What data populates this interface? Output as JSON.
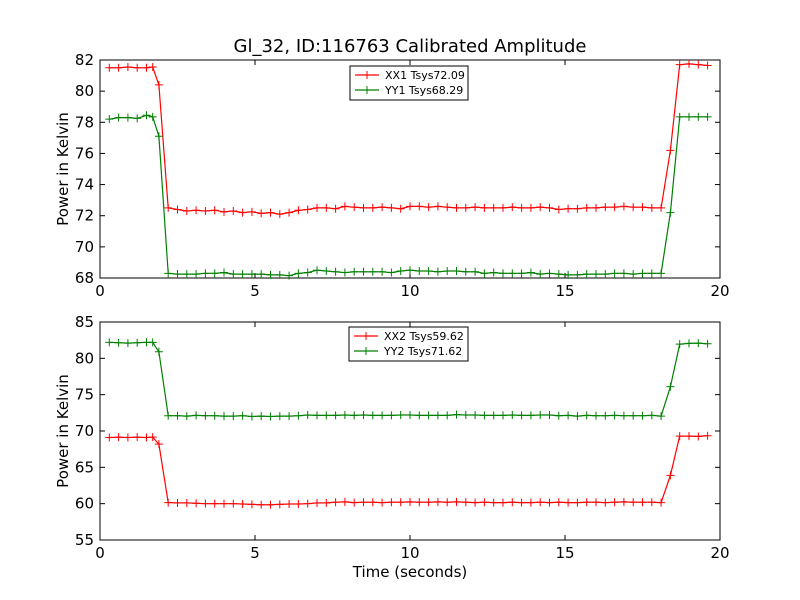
{
  "chart_data": [
    {
      "type": "line",
      "title": "Gl_32, ID:116763 Calibrated Amplitude",
      "xlabel": "",
      "ylabel": "Power in Kelvin",
      "xlim": [
        0,
        20
      ],
      "ylim": [
        68,
        82
      ],
      "xticks": [
        0,
        5,
        10,
        15,
        20
      ],
      "yticks": [
        68,
        70,
        72,
        74,
        76,
        78,
        80,
        82
      ],
      "grid": false,
      "legend_position": "top-center",
      "x": [
        0.3,
        0.6,
        0.9,
        1.2,
        1.5,
        1.7,
        1.9,
        2.2,
        2.5,
        2.8,
        3.1,
        3.4,
        3.7,
        4.0,
        4.3,
        4.6,
        4.9,
        5.2,
        5.5,
        5.8,
        6.1,
        6.4,
        6.7,
        7.0,
        7.3,
        7.6,
        7.9,
        8.2,
        8.5,
        8.8,
        9.1,
        9.4,
        9.7,
        10.0,
        10.3,
        10.6,
        10.9,
        11.2,
        11.5,
        11.8,
        12.1,
        12.4,
        12.7,
        13.0,
        13.3,
        13.6,
        13.9,
        14.2,
        14.5,
        14.8,
        15.1,
        15.4,
        15.7,
        16.0,
        16.3,
        16.6,
        16.9,
        17.2,
        17.5,
        17.8,
        18.1,
        18.4,
        18.7,
        19.0,
        19.3,
        19.6
      ],
      "series": [
        {
          "name": "XX1 Tsys72.09",
          "color": "#ff0000",
          "values": [
            81.5,
            81.5,
            81.55,
            81.5,
            81.5,
            81.55,
            80.4,
            72.5,
            72.4,
            72.3,
            72.35,
            72.3,
            72.35,
            72.25,
            72.3,
            72.2,
            72.25,
            72.15,
            72.2,
            72.1,
            72.2,
            72.35,
            72.4,
            72.5,
            72.5,
            72.45,
            72.6,
            72.55,
            72.5,
            72.5,
            72.55,
            72.5,
            72.45,
            72.6,
            72.6,
            72.55,
            72.6,
            72.55,
            72.5,
            72.5,
            72.55,
            72.5,
            72.5,
            72.5,
            72.55,
            72.5,
            72.5,
            72.55,
            72.5,
            72.4,
            72.45,
            72.45,
            72.5,
            72.5,
            72.55,
            72.55,
            72.6,
            72.55,
            72.55,
            72.5,
            72.5,
            76.2,
            81.7,
            81.75,
            81.7,
            81.65
          ]
        },
        {
          "name": "YY1 Tsys68.29",
          "color": "#008000",
          "values": [
            78.2,
            78.3,
            78.3,
            78.25,
            78.45,
            78.35,
            77.1,
            68.3,
            68.25,
            68.25,
            68.25,
            68.3,
            68.3,
            68.35,
            68.25,
            68.25,
            68.25,
            68.25,
            68.2,
            68.2,
            68.15,
            68.3,
            68.35,
            68.5,
            68.45,
            68.4,
            68.35,
            68.4,
            68.4,
            68.4,
            68.4,
            68.35,
            68.45,
            68.5,
            68.45,
            68.45,
            68.4,
            68.45,
            68.45,
            68.4,
            68.4,
            68.3,
            68.35,
            68.3,
            68.3,
            68.3,
            68.35,
            68.25,
            68.3,
            68.25,
            68.2,
            68.2,
            68.25,
            68.25,
            68.25,
            68.3,
            68.3,
            68.25,
            68.3,
            68.3,
            68.3,
            72.2,
            78.35,
            78.35,
            78.35,
            78.35
          ]
        }
      ]
    },
    {
      "type": "line",
      "title": "",
      "xlabel": "Time (seconds)",
      "ylabel": "Power in Kelvin",
      "xlim": [
        0,
        20
      ],
      "ylim": [
        55,
        85
      ],
      "xticks": [
        0,
        5,
        10,
        15,
        20
      ],
      "yticks": [
        55,
        60,
        65,
        70,
        75,
        80,
        85
      ],
      "grid": false,
      "legend_position": "top-center",
      "x": [
        0.3,
        0.6,
        0.9,
        1.2,
        1.5,
        1.7,
        1.9,
        2.2,
        2.5,
        2.8,
        3.1,
        3.4,
        3.7,
        4.0,
        4.3,
        4.6,
        4.9,
        5.2,
        5.5,
        5.8,
        6.1,
        6.4,
        6.7,
        7.0,
        7.3,
        7.6,
        7.9,
        8.2,
        8.5,
        8.8,
        9.1,
        9.4,
        9.7,
        10.0,
        10.3,
        10.6,
        10.9,
        11.2,
        11.5,
        11.8,
        12.1,
        12.4,
        12.7,
        13.0,
        13.3,
        13.6,
        13.9,
        14.2,
        14.5,
        14.8,
        15.1,
        15.4,
        15.7,
        16.0,
        16.3,
        16.6,
        16.9,
        17.2,
        17.5,
        17.8,
        18.1,
        18.4,
        18.7,
        19.0,
        19.3,
        19.6
      ],
      "series": [
        {
          "name": "XX2 Tsys59.62",
          "color": "#ff0000",
          "values": [
            69.1,
            69.15,
            69.1,
            69.15,
            69.1,
            69.15,
            68.2,
            60.15,
            60.1,
            60.1,
            60.05,
            60.0,
            60.0,
            60.0,
            60.0,
            59.95,
            59.9,
            59.85,
            59.85,
            59.9,
            59.95,
            59.95,
            60.0,
            60.1,
            60.1,
            60.2,
            60.25,
            60.15,
            60.2,
            60.2,
            60.15,
            60.2,
            60.2,
            60.25,
            60.2,
            60.2,
            60.25,
            60.2,
            60.25,
            60.2,
            60.15,
            60.2,
            60.15,
            60.15,
            60.2,
            60.15,
            60.15,
            60.2,
            60.15,
            60.2,
            60.15,
            60.15,
            60.2,
            60.2,
            60.15,
            60.2,
            60.25,
            60.2,
            60.2,
            60.2,
            60.15,
            63.9,
            69.3,
            69.3,
            69.25,
            69.35
          ]
        },
        {
          "name": "YY2 Tsys71.62",
          "color": "#008000",
          "values": [
            82.2,
            82.15,
            82.1,
            82.15,
            82.2,
            82.2,
            80.9,
            72.1,
            72.1,
            72.05,
            72.15,
            72.1,
            72.1,
            72.05,
            72.05,
            72.1,
            72.0,
            72.05,
            72.0,
            72.05,
            72.05,
            72.1,
            72.2,
            72.15,
            72.15,
            72.15,
            72.2,
            72.15,
            72.2,
            72.15,
            72.15,
            72.15,
            72.2,
            72.2,
            72.15,
            72.15,
            72.15,
            72.15,
            72.25,
            72.2,
            72.2,
            72.15,
            72.15,
            72.15,
            72.2,
            72.15,
            72.15,
            72.2,
            72.2,
            72.1,
            72.15,
            72.05,
            72.15,
            72.1,
            72.1,
            72.15,
            72.1,
            72.1,
            72.1,
            72.15,
            72.05,
            76.1,
            81.95,
            82.05,
            82.1,
            82.0
          ]
        }
      ]
    }
  ]
}
